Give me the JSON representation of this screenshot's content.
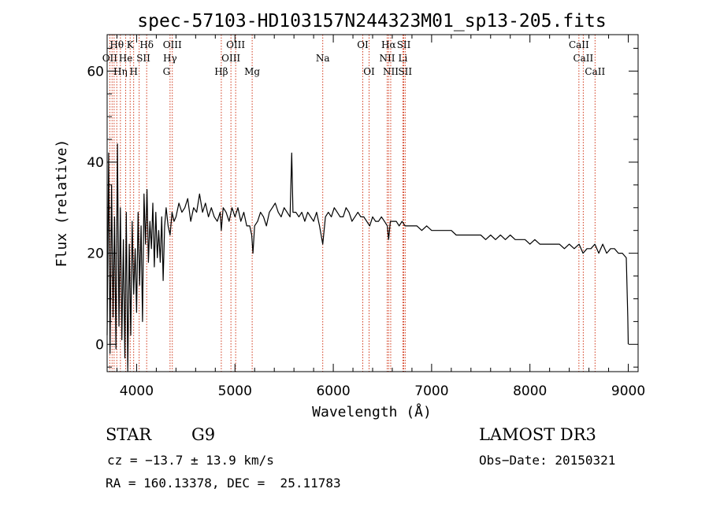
{
  "colors": {
    "spectrum": "#000000",
    "line_marker": "#cc2200",
    "axis": "#000000",
    "background": "#ffffff"
  },
  "chart_data": {
    "type": "line",
    "title": "spec-57103-HD103157N244323M01_sp13-205.fits",
    "xlabel": "Wavelength (Å)",
    "ylabel": "Flux (relative)",
    "xlim": [
      3700,
      9100
    ],
    "ylim": [
      -6,
      68
    ],
    "x_ticks": [
      4000,
      5000,
      6000,
      7000,
      8000,
      9000
    ],
    "y_ticks": [
      0,
      20,
      40,
      60
    ],
    "x_tick_labels": [
      "4000",
      "5000",
      "6000",
      "7000",
      "8000",
      "9000"
    ],
    "y_tick_labels": [
      "0",
      "20",
      "40",
      "60"
    ],
    "grid": false,
    "legend": "none",
    "series": [
      {
        "name": "spectrum",
        "x": [
          3700,
          3715,
          3730,
          3745,
          3760,
          3775,
          3790,
          3805,
          3820,
          3835,
          3850,
          3865,
          3880,
          3895,
          3910,
          3925,
          3940,
          3955,
          3970,
          3985,
          4000,
          4015,
          4030,
          4045,
          4060,
          4075,
          4090,
          4105,
          4120,
          4135,
          4150,
          4165,
          4180,
          4195,
          4210,
          4225,
          4240,
          4255,
          4270,
          4285,
          4300,
          4320,
          4340,
          4360,
          4380,
          4400,
          4430,
          4460,
          4490,
          4520,
          4550,
          4580,
          4610,
          4640,
          4670,
          4700,
          4730,
          4760,
          4790,
          4820,
          4850,
          4861,
          4880,
          4910,
          4940,
          4970,
          5000,
          5030,
          5060,
          5090,
          5120,
          5150,
          5170,
          5183,
          5200,
          5230,
          5260,
          5290,
          5320,
          5350,
          5380,
          5410,
          5440,
          5470,
          5500,
          5530,
          5560,
          5577,
          5590,
          5620,
          5650,
          5680,
          5710,
          5740,
          5770,
          5800,
          5830,
          5860,
          5893,
          5920,
          5950,
          5980,
          6010,
          6040,
          6070,
          6100,
          6130,
          6160,
          6190,
          6220,
          6250,
          6280,
          6310,
          6340,
          6370,
          6400,
          6430,
          6460,
          6490,
          6520,
          6550,
          6563,
          6580,
          6610,
          6640,
          6670,
          6700,
          6730,
          6760,
          6800,
          6850,
          6900,
          6950,
          7000,
          7050,
          7100,
          7150,
          7200,
          7250,
          7300,
          7350,
          7400,
          7450,
          7500,
          7550,
          7600,
          7650,
          7700,
          7750,
          7800,
          7850,
          7900,
          7950,
          8000,
          8050,
          8100,
          8150,
          8200,
          8250,
          8300,
          8350,
          8400,
          8450,
          8500,
          8540,
          8580,
          8620,
          8660,
          8700,
          8740,
          8780,
          8820,
          8860,
          8900,
          8940,
          8980,
          8995,
          9000
        ],
        "values": [
          2,
          42,
          -2,
          35,
          6,
          28,
          -1,
          44,
          4,
          30,
          1,
          23,
          -3,
          29,
          -6,
          22,
          2,
          27,
          11,
          21,
          7,
          29,
          13,
          26,
          5,
          33,
          22,
          34,
          18,
          27,
          21,
          31,
          17,
          29,
          19,
          25,
          18,
          28,
          14,
          26,
          30,
          26,
          24,
          29,
          27,
          28,
          31,
          29,
          30,
          32,
          27,
          30,
          29,
          33,
          29,
          31,
          28,
          30,
          28,
          27,
          29,
          25,
          30,
          29,
          27,
          30,
          28,
          30,
          27,
          29,
          26,
          26,
          24,
          20,
          26,
          27,
          29,
          28,
          26,
          29,
          30,
          31,
          29,
          28,
          30,
          29,
          28,
          42,
          29,
          29,
          28,
          29,
          27,
          29,
          28,
          27,
          29,
          26,
          22,
          28,
          29,
          28,
          30,
          29,
          28,
          28,
          30,
          29,
          27,
          28,
          29,
          28,
          28,
          27,
          26,
          28,
          27,
          27,
          28,
          27,
          26,
          23,
          27,
          27,
          27,
          26,
          27,
          26,
          26,
          26,
          26,
          25,
          26,
          25,
          25,
          25,
          25,
          25,
          24,
          24,
          24,
          24,
          24,
          24,
          23,
          24,
          23,
          24,
          23,
          24,
          23,
          23,
          23,
          22,
          23,
          22,
          22,
          22,
          22,
          22,
          21,
          22,
          21,
          22,
          20,
          21,
          21,
          22,
          20,
          22,
          20,
          21,
          21,
          20,
          20,
          19,
          6,
          0
        ]
      }
    ],
    "line_markers_x": [
      3727,
      3750,
      3771,
      3798,
      3835,
      3889,
      3934,
      3970,
      4026,
      4102,
      4340,
      4363,
      4861,
      4959,
      5007,
      5175,
      5893,
      6300,
      6364,
      6548,
      6563,
      6584,
      6708,
      6717,
      6731,
      8498,
      8542,
      8662
    ],
    "line_labels": [
      {
        "text": "Hθ",
        "x": 3798,
        "row": 1
      },
      {
        "text": "K",
        "x": 3934,
        "row": 1
      },
      {
        "text": "Hδ",
        "x": 4102,
        "row": 1
      },
      {
        "text": "OIII",
        "x": 4363,
        "row": 1
      },
      {
        "text": "OIII",
        "x": 5007,
        "row": 1
      },
      {
        "text": "OI",
        "x": 6300,
        "row": 1
      },
      {
        "text": "Hα",
        "x": 6563,
        "row": 1
      },
      {
        "text": "SII",
        "x": 6717,
        "row": 1
      },
      {
        "text": "CaII",
        "x": 8498,
        "row": 1
      },
      {
        "text": "OII",
        "x": 3727,
        "row": 2
      },
      {
        "text": "He",
        "x": 3889,
        "row": 2
      },
      {
        "text": "SII",
        "x": 4069,
        "row": 2
      },
      {
        "text": "Hγ",
        "x": 4340,
        "row": 2
      },
      {
        "text": "OIII",
        "x": 4959,
        "row": 2
      },
      {
        "text": "Na",
        "x": 5893,
        "row": 2
      },
      {
        "text": "NII",
        "x": 6548,
        "row": 2
      },
      {
        "text": "Li",
        "x": 6708,
        "row": 2
      },
      {
        "text": "CaII",
        "x": 8542,
        "row": 2
      },
      {
        "text": "Hη",
        "x": 3835,
        "row": 3
      },
      {
        "text": "H",
        "x": 3970,
        "row": 3
      },
      {
        "text": "G",
        "x": 4304,
        "row": 3
      },
      {
        "text": "Hβ",
        "x": 4861,
        "row": 3
      },
      {
        "text": "Mg",
        "x": 5175,
        "row": 3
      },
      {
        "text": "OI",
        "x": 6364,
        "row": 3
      },
      {
        "text": "NII",
        "x": 6584,
        "row": 3
      },
      {
        "text": "SII",
        "x": 6731,
        "row": 3
      },
      {
        "text": "CaII",
        "x": 8662,
        "row": 3
      }
    ]
  },
  "info": {
    "class_label": "STAR",
    "subclass": "G9",
    "survey": "LAMOST DR3",
    "cz": "cz = −13.7 ± 13.9 km/s",
    "obs_date": "Obs−Date: 20150321",
    "coords": "RA = 160.13378, DEC =  25.11783"
  }
}
